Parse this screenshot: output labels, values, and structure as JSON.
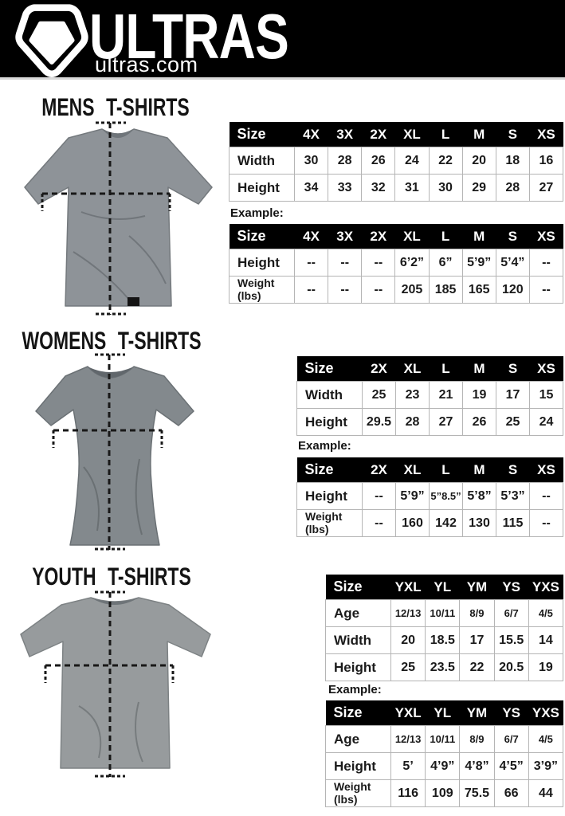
{
  "colors": {
    "header_bg": "#000000",
    "table_header_bg": "#000000",
    "table_border": "#b5b5b5",
    "shirt_mens": "#8e9398",
    "shirt_womens": "#83898d",
    "shirt_youth": "#979b9d"
  },
  "header": {
    "brand": "ULTRAS",
    "site": "ultras.com",
    "logo_icon": "pentagon-badge-icon"
  },
  "sections": [
    {
      "title": "MENS T-SHIRTS",
      "example_label": "Example:",
      "size_table": {
        "columns": [
          "Size",
          "4X",
          "3X",
          "2X",
          "XL",
          "L",
          "M",
          "S",
          "XS"
        ],
        "rows": [
          {
            "label": "Width",
            "values": [
              "30",
              "28",
              "26",
              "24",
              "22",
              "20",
              "18",
              "16"
            ]
          },
          {
            "label": "Height",
            "values": [
              "34",
              "33",
              "32",
              "31",
              "30",
              "29",
              "28",
              "27"
            ]
          }
        ]
      },
      "example_table": {
        "columns": [
          "Size",
          "4X",
          "3X",
          "2X",
          "XL",
          "L",
          "M",
          "S",
          "XS"
        ],
        "rows": [
          {
            "label": "Height",
            "values": [
              "--",
              "--",
              "--",
              "6’2”",
              "6”",
              "5’9”",
              "5’4”",
              "--"
            ]
          },
          {
            "label": "Weight\n(lbs)",
            "values": [
              "--",
              "--",
              "--",
              "205",
              "185",
              "165",
              "120",
              "--"
            ]
          }
        ]
      }
    },
    {
      "title": "WOMENS T-SHIRTS",
      "example_label": "Example:",
      "size_table": {
        "columns": [
          "Size",
          "2X",
          "XL",
          "L",
          "M",
          "S",
          "XS"
        ],
        "rows": [
          {
            "label": "Width",
            "values": [
              "25",
              "23",
              "21",
              "19",
              "17",
              "15"
            ]
          },
          {
            "label": "Height",
            "values": [
              "29.5",
              "28",
              "27",
              "26",
              "25",
              "24"
            ]
          }
        ]
      },
      "example_table": {
        "columns": [
          "Size",
          "2X",
          "XL",
          "L",
          "M",
          "S",
          "XS"
        ],
        "rows": [
          {
            "label": "Height",
            "values": [
              "--",
              "5’9”",
              "5”8.5”",
              "5’8”",
              "5’3”",
              "--"
            ]
          },
          {
            "label": "Weight\n(lbs)",
            "values": [
              "--",
              "160",
              "142",
              "130",
              "115",
              "--"
            ]
          }
        ]
      }
    },
    {
      "title": "YOUTH T-SHIRTS",
      "example_label": "Example:",
      "size_table": {
        "columns": [
          "Size",
          "YXL",
          "YL",
          "YM",
          "YS",
          "YXS"
        ],
        "rows": [
          {
            "label": "Age",
            "values": [
              "12/13",
              "10/11",
              "8/9",
              "6/7",
              "4/5"
            ]
          },
          {
            "label": "Width",
            "values": [
              "20",
              "18.5",
              "17",
              "15.5",
              "14"
            ]
          },
          {
            "label": "Height",
            "values": [
              "25",
              "23.5",
              "22",
              "20.5",
              "19"
            ]
          }
        ]
      },
      "example_table": {
        "columns": [
          "Size",
          "YXL",
          "YL",
          "YM",
          "YS",
          "YXS"
        ],
        "rows": [
          {
            "label": "Age",
            "values": [
              "12/13",
              "10/11",
              "8/9",
              "6/7",
              "4/5"
            ]
          },
          {
            "label": "Height",
            "values": [
              "5’",
              "4’9”",
              "4’8”",
              "4’5”",
              "3’9”"
            ]
          },
          {
            "label": "Weight\n(lbs)",
            "values": [
              "116",
              "109",
              "75.5",
              "66",
              "44"
            ]
          }
        ]
      }
    }
  ]
}
